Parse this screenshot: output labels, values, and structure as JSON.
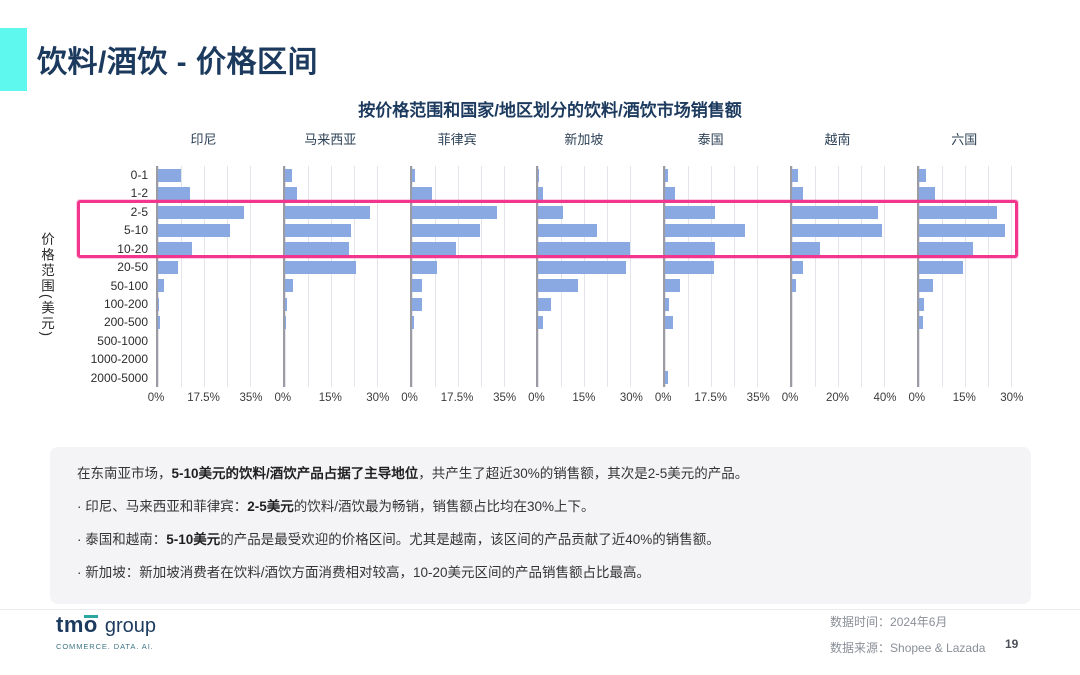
{
  "slide": {
    "title": "饮料/酒饮 - 价格区间",
    "page_number": "19"
  },
  "chart_data": {
    "type": "bar",
    "orientation": "horizontal",
    "title": "按价格范围和国家/地区划分的饮料/酒饮市场销售额",
    "ylabel": "价格范围(美元)",
    "unit": "%",
    "grid": true,
    "categories": [
      "0-1",
      "1-2",
      "2-5",
      "5-10",
      "10-20",
      "20-50",
      "50-100",
      "100-200",
      "200-500",
      "500-1000",
      "1000-2000",
      "2000-5000"
    ],
    "series": [
      {
        "name": "印尼",
        "xlim": [
          0,
          35
        ],
        "ticks": [
          "0%",
          "17.5%",
          "35%"
        ],
        "values": [
          8.6,
          11.6,
          31.7,
          26.5,
          12.6,
          7.3,
          2.1,
          0.5,
          0.7,
          0,
          0,
          0
        ]
      },
      {
        "name": "马来西亚",
        "xlim": [
          0,
          30
        ],
        "ticks": [
          "0%",
          "15%",
          "30%"
        ],
        "values": [
          2.4,
          3.8,
          26.8,
          21.0,
          20.2,
          22.5,
          2.7,
          0.6,
          0.3,
          0,
          0,
          0
        ]
      },
      {
        "name": "菲律宾",
        "xlim": [
          0,
          35
        ],
        "ticks": [
          "0%",
          "17.5%",
          "35%"
        ],
        "values": [
          1.2,
          7.6,
          31.3,
          25.1,
          16.4,
          9.2,
          3.7,
          3.9,
          0.9,
          0,
          0,
          0
        ]
      },
      {
        "name": "新加坡",
        "xlim": [
          0,
          30
        ],
        "ticks": [
          "0%",
          "15%",
          "30%"
        ],
        "values": [
          0.2,
          1.5,
          7.8,
          18.6,
          28.8,
          27.6,
          12.5,
          3.9,
          1.5,
          0,
          0,
          0
        ]
      },
      {
        "name": "泰国",
        "xlim": [
          0,
          35
        ],
        "ticks": [
          "0%",
          "17.5%",
          "35%"
        ],
        "values": [
          1.2,
          3.5,
          18.4,
          29.4,
          18.2,
          17.9,
          5.4,
          1.3,
          2.8,
          0,
          0,
          0.9
        ]
      },
      {
        "name": "越南",
        "xlim": [
          0,
          40
        ],
        "ticks": [
          "0%",
          "20%",
          "40%"
        ],
        "values": [
          2.3,
          4.7,
          36.3,
          38.0,
          11.7,
          4.5,
          1.5,
          0,
          0,
          0,
          0,
          0
        ]
      },
      {
        "name": "六国",
        "xlim": [
          0,
          30
        ],
        "ticks": [
          "0%",
          "15%",
          "30%"
        ],
        "values": [
          2.3,
          5.0,
          24.8,
          27.3,
          17.2,
          13.9,
          4.6,
          1.7,
          1.4,
          0,
          0,
          0
        ]
      }
    ],
    "highlight": {
      "rows": [
        "2-5",
        "5-10",
        "10-20"
      ],
      "color": "#f2368e"
    },
    "bar_color": "#8aa9e3"
  },
  "summary": {
    "lines": [
      {
        "segments": [
          {
            "t": "在东南亚市场，",
            "b": false
          },
          {
            "t": "5-10美元的饮料/酒饮产品占据了主导地位",
            "b": true
          },
          {
            "t": "，共产生了超近30%的销售额，其次是2-5美元的产品。",
            "b": false
          }
        ]
      },
      {
        "segments": [
          {
            "t": "· 印尼、马来西亚和菲律宾：",
            "b": false
          },
          {
            "t": "2-5美元",
            "b": true
          },
          {
            "t": "的饮料/酒饮最为畅销，销售额占比均在30%上下。",
            "b": false
          }
        ]
      },
      {
        "segments": [
          {
            "t": "· 泰国和越南：",
            "b": false
          },
          {
            "t": "5-10美元",
            "b": true
          },
          {
            "t": "的产品是最受欢迎的价格区间。尤其是越南，该区间的产品贡献了近40%的销售额。",
            "b": false
          }
        ]
      },
      {
        "segments": [
          {
            "t": "· 新加坡：新加坡消费者在饮料/酒饮方面消费相对较高，10-20美元区间的产品销售额占比最高。",
            "b": false
          }
        ]
      }
    ]
  },
  "footer": {
    "logo_text": "tmo",
    "logo_suffix": "group",
    "logo_tagline": "COMMERCE. DATA. AI.",
    "data_time_label": "数据时间：",
    "data_time_value": "2024年6月",
    "data_source_label": "数据来源：",
    "data_source_value": "Shopee & Lazada"
  },
  "colors": {
    "accent_cyan": "#5ef8ef",
    "title_navy": "#1c3a5e",
    "bar_blue": "#8aa9e3",
    "highlight_pink": "#f2368e",
    "summary_bg": "#f4f4f6"
  }
}
